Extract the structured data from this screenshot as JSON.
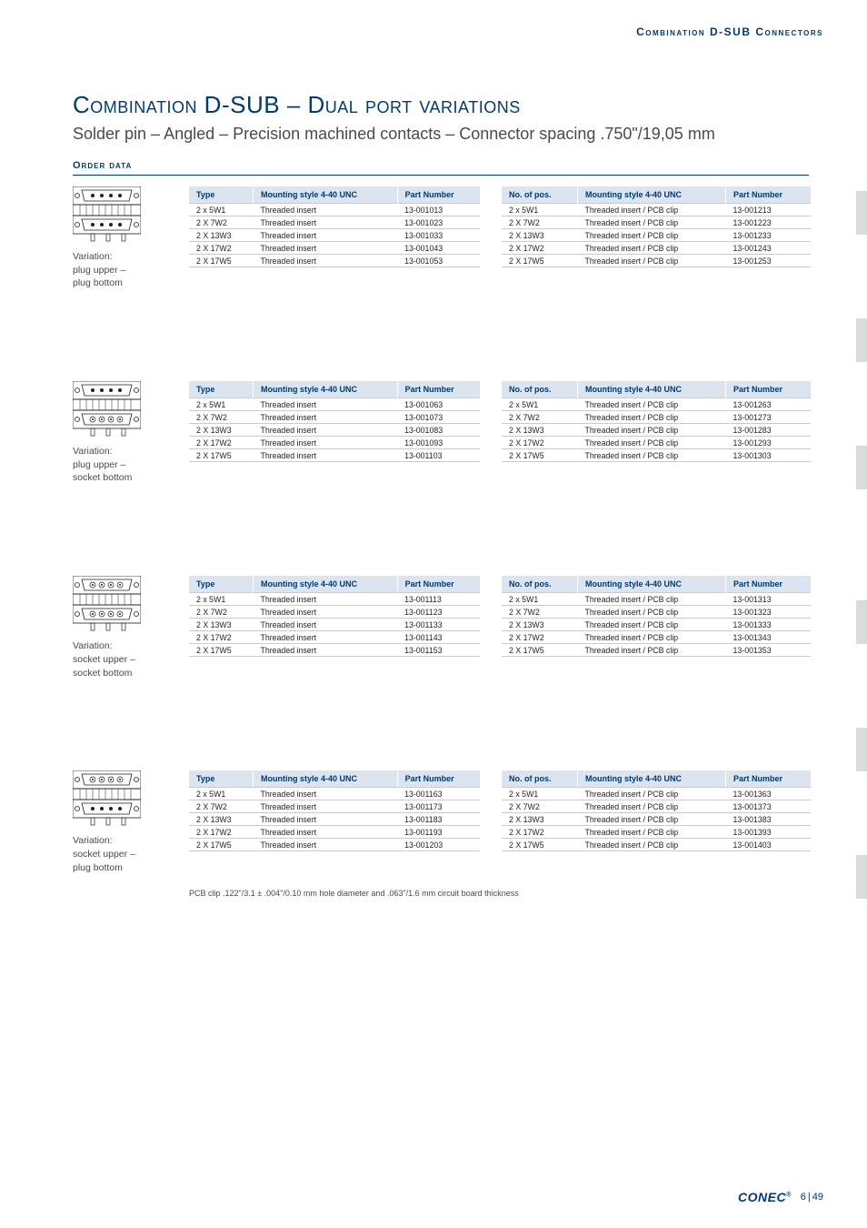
{
  "colors": {
    "brand_blue": "#003a70",
    "header_bg": "#dbe4ef",
    "row_border": "#c8ccd0",
    "text": "#231f20",
    "subtext": "#4a4a4a",
    "side_tab": "#d9dbdd",
    "page_bg": "#ffffff"
  },
  "typography": {
    "title_fontsize_pt": 26,
    "subtitle_fontsize_pt": 18,
    "table_header_fontsize_pt": 9,
    "table_cell_fontsize_pt": 8.8,
    "label_fontsize_pt": 10.5,
    "footnote_fontsize_pt": 9
  },
  "header": "Combination D-SUB Connectors",
  "title": "Combination D-SUB – Dual port variations",
  "subtitle": "Solder pin – Angled – Precision machined contacts – Connector spacing .750\"/19,05 mm",
  "order_data_label": "Order data",
  "table_headers_left": [
    "Type",
    "Mounting style 4-40 UNC",
    "Part Number"
  ],
  "table_headers_right": [
    "No. of pos.",
    "Mounting style 4-40 UNC",
    "Part Number"
  ],
  "mounting_left": "Threaded insert",
  "mounting_right": "Threaded insert / PCB clip",
  "types": [
    "2 x  5W1",
    "2 X  7W2",
    "2 X 13W3",
    "2 X 17W2",
    "2 X 17W5"
  ],
  "sections": [
    {
      "variation": "Variation:\nplug upper –\nplug bottom",
      "icon": "plug-plug",
      "left_pn": [
        "13-001013",
        "13-001023",
        "13-001033",
        "13-001043",
        "13-001053"
      ],
      "right_pn": [
        "13-001213",
        "13-001223",
        "13-001233",
        "13-001243",
        "13-001253"
      ]
    },
    {
      "variation": "Variation:\nplug upper –\nsocket bottom",
      "icon": "plug-socket",
      "left_pn": [
        "13-001063",
        "13-001073",
        "13-001083",
        "13-001093",
        "13-001103"
      ],
      "right_pn": [
        "13-001263",
        "13-001273",
        "13-001283",
        "13-001293",
        "13-001303"
      ]
    },
    {
      "variation": "Variation:\nsocket upper –\nsocket bottom",
      "icon": "socket-socket",
      "left_pn": [
        "13-001113",
        "13-001123",
        "13-001133",
        "13-001143",
        "13-001153"
      ],
      "right_pn": [
        "13-001313",
        "13-001323",
        "13-001333",
        "13-001343",
        "13-001353"
      ]
    },
    {
      "variation": "Variation:\nsocket upper –\nplug bottom",
      "icon": "socket-plug",
      "left_pn": [
        "13-001163",
        "13-001173",
        "13-001183",
        "13-001193",
        "13-001203"
      ],
      "right_pn": [
        "13-001363",
        "13-001373",
        "13-001383",
        "13-001393",
        "13-001403"
      ]
    }
  ],
  "footnote": "PCB clip .122\"/3.1 ± .004\"/0.10 mm hole diameter and .063\"/1.6 mm circuit board thickness",
  "side_tabs_y": [
    210,
    350,
    490,
    660,
    800,
    940
  ],
  "footer": {
    "logo": "CONEC",
    "page": "6",
    "total": "49"
  }
}
